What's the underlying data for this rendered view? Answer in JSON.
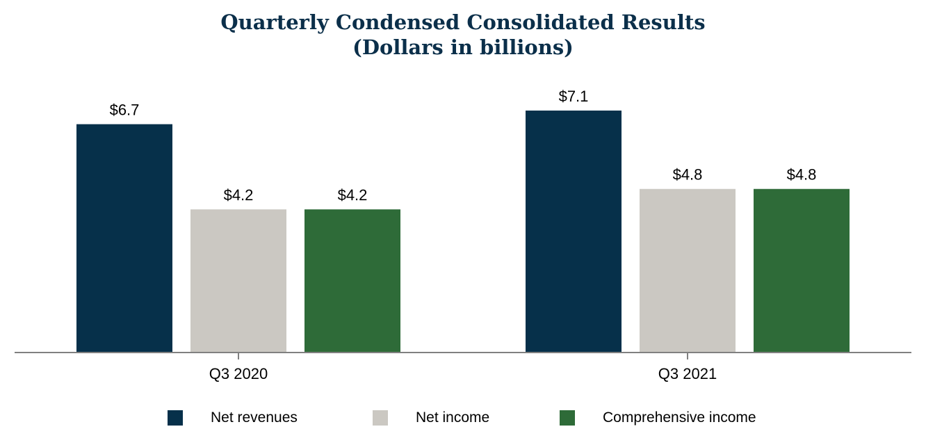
{
  "header": {
    "title_line1": "Quarterly Condensed Consolidated Results",
    "title_line2": "(Dollars in billions)"
  },
  "chart_data": {
    "type": "bar",
    "title": "Quarterly Condensed Consolidated Results (Dollars in billions)",
    "categories": [
      "Q3 2020",
      "Q3 2021"
    ],
    "series": [
      {
        "name": "Net revenues",
        "values": [
          6.7,
          7.1
        ],
        "labels": [
          "$6.7",
          "$7.1"
        ],
        "color": "#06304a"
      },
      {
        "name": "Net income",
        "values": [
          4.2,
          4.8
        ],
        "labels": [
          "$4.2",
          "$4.8"
        ],
        "color": "#cbc8c2"
      },
      {
        "name": "Comprehensive income",
        "values": [
          4.2,
          4.8
        ],
        "labels": [
          "$4.2",
          "$4.8"
        ],
        "color": "#2e6b38"
      }
    ],
    "ylim": [
      0,
      8.1
    ],
    "grid": false,
    "legend_position": "bottom",
    "axis_color": "#808080"
  }
}
